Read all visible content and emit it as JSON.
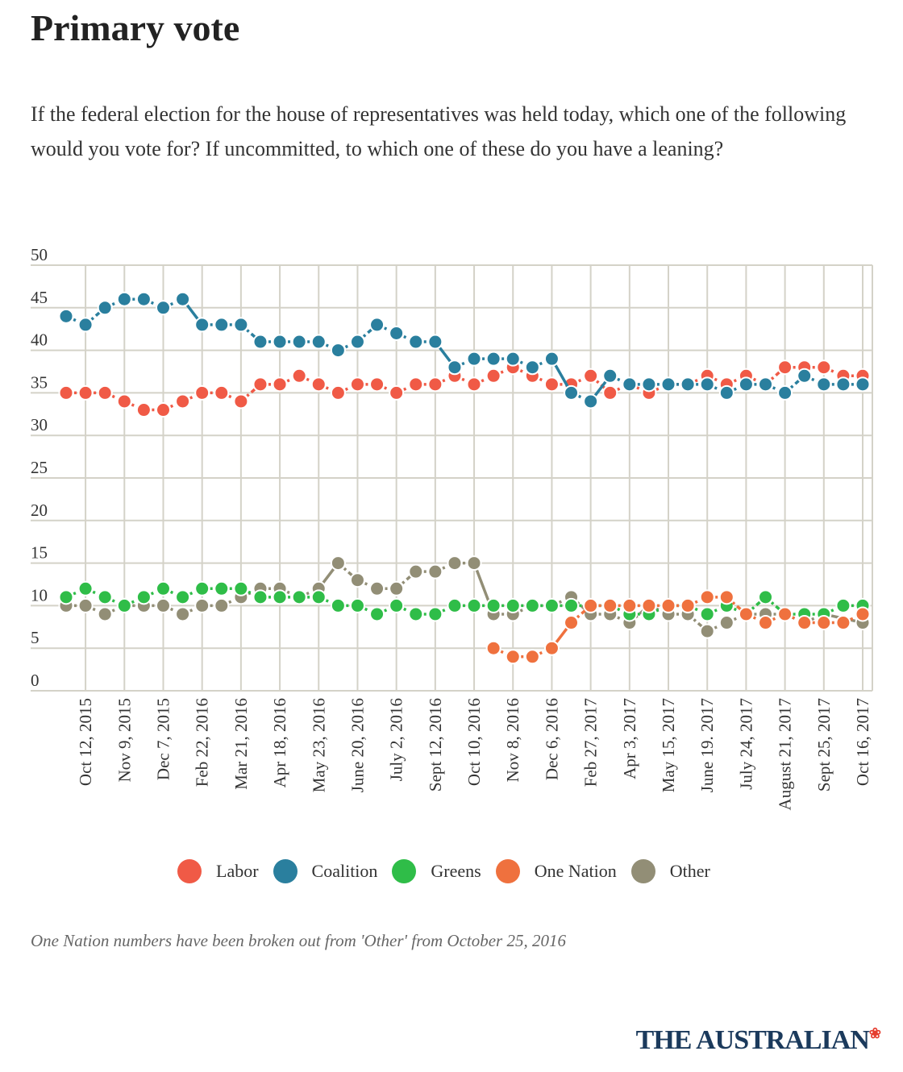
{
  "title": "Primary vote",
  "subtitle": "If the federal election for the house of representatives was held today, which one of the following would you vote for? If uncommitted, to which one of these do you have a leaning?",
  "note": "One Nation numbers have been broken out from 'Other' from October 25, 2016",
  "logo": "THE AUSTRALIAN",
  "chart_data": {
    "type": "line",
    "title": "Primary vote",
    "ylim": [
      0,
      50
    ],
    "yticks": [
      0,
      5,
      10,
      15,
      20,
      25,
      30,
      35,
      40,
      45,
      50
    ],
    "grid": true,
    "legend_position": "bottom",
    "x_tick_labels": [
      "Oct 12, 2015",
      "Nov 9, 2015",
      "Dec 7, 2015",
      "Feb 22, 2016",
      "Mar 21, 2016",
      "Apr 18, 2016",
      "May 23, 2016",
      "June 20, 2016",
      "July 2, 2016",
      "Sept 12, 2016",
      "Oct 10, 2016",
      "Nov 8, 2016",
      "Dec 6, 2016",
      "Feb 27, 2017",
      "Apr 3, 2017",
      "May 15, 2017",
      "June 19. 2017",
      "July 24, 2017",
      "August 21, 2017",
      "Sept 25, 2017",
      "Oct 16, 2017"
    ],
    "n_points": 42,
    "series": [
      {
        "name": "Labor",
        "color": "#f05a46",
        "values": [
          35,
          35,
          35,
          34,
          33,
          33,
          34,
          35,
          35,
          34,
          36,
          36,
          37,
          36,
          35,
          36,
          36,
          35,
          36,
          36,
          37,
          36,
          37,
          38,
          37,
          36,
          36,
          37,
          35,
          36,
          35,
          36,
          36,
          37,
          36,
          37,
          36,
          38,
          38,
          38,
          37,
          37
        ]
      },
      {
        "name": "Coalition",
        "color": "#2a7f9e",
        "values": [
          44,
          43,
          45,
          46,
          46,
          45,
          46,
          43,
          43,
          43,
          41,
          41,
          41,
          41,
          40,
          41,
          43,
          42,
          41,
          41,
          38,
          39,
          39,
          39,
          38,
          39,
          35,
          34,
          37,
          36,
          36,
          36,
          36,
          36,
          35,
          36,
          36,
          35,
          37,
          36,
          36,
          36
        ]
      },
      {
        "name": "Greens",
        "color": "#2fbd48",
        "values": [
          11,
          12,
          11,
          10,
          11,
          12,
          11,
          12,
          12,
          12,
          11,
          11,
          11,
          11,
          10,
          10,
          9,
          10,
          9,
          9,
          10,
          10,
          10,
          10,
          10,
          10,
          10,
          10,
          10,
          9,
          9,
          10,
          10,
          9,
          10,
          9,
          11,
          9,
          9,
          9,
          10,
          10
        ]
      },
      {
        "name": "One Nation",
        "color": "#ef713e",
        "values": [
          null,
          null,
          null,
          null,
          null,
          null,
          null,
          null,
          null,
          null,
          null,
          null,
          null,
          null,
          null,
          null,
          null,
          null,
          null,
          null,
          null,
          null,
          5,
          4,
          4,
          5,
          8,
          10,
          10,
          10,
          10,
          10,
          10,
          11,
          11,
          9,
          8,
          9,
          8,
          8,
          8,
          9
        ]
      },
      {
        "name": "Other",
        "color": "#928e76",
        "values": [
          10,
          10,
          9,
          10,
          10,
          10,
          9,
          10,
          10,
          11,
          12,
          12,
          11,
          12,
          15,
          13,
          12,
          12,
          14,
          14,
          15,
          15,
          9,
          9,
          10,
          10,
          11,
          9,
          9,
          8,
          10,
          9,
          9,
          7,
          8,
          9,
          9,
          9,
          8,
          9,
          null,
          8
        ]
      }
    ]
  }
}
